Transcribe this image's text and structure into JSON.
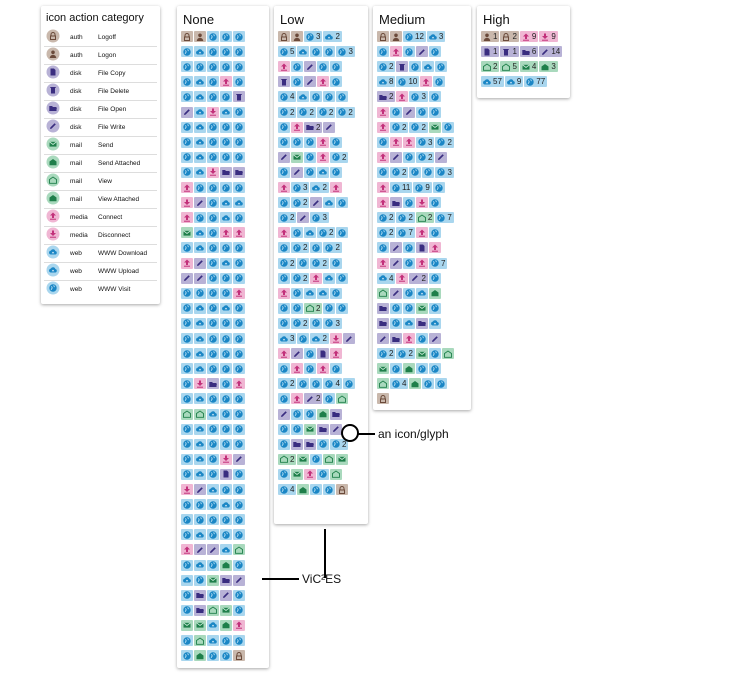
{
  "legend": {
    "title": "icon action category",
    "rows": [
      {
        "category": "auth",
        "action": "Logoff",
        "icon": "auth-logoff"
      },
      {
        "category": "auth",
        "action": "Logon",
        "icon": "auth-logon"
      },
      {
        "category": "disk",
        "action": "File Copy",
        "icon": "disk-copy"
      },
      {
        "category": "disk",
        "action": "File Delete",
        "icon": "disk-delete"
      },
      {
        "category": "disk",
        "action": "File Open",
        "icon": "disk-open"
      },
      {
        "category": "disk",
        "action": "File Write",
        "icon": "disk-write"
      },
      {
        "category": "mail",
        "action": "Send",
        "icon": "mail-send"
      },
      {
        "category": "mail",
        "action": "Send Attached",
        "icon": "mail-send-attached"
      },
      {
        "category": "mail",
        "action": "View",
        "icon": "mail-view"
      },
      {
        "category": "mail",
        "action": "View Attached",
        "icon": "mail-view-attached"
      },
      {
        "category": "media",
        "action": "Connect",
        "icon": "media-connect"
      },
      {
        "category": "media",
        "action": "Disconnect",
        "icon": "media-disconnect"
      },
      {
        "category": "web",
        "action": "WWW Download",
        "icon": "web-download"
      },
      {
        "category": "web",
        "action": "WWW Upload",
        "icon": "web-upload"
      },
      {
        "category": "web",
        "action": "WWW Visit",
        "icon": "web-visit"
      }
    ]
  },
  "colors": {
    "auth": "#c9b8ac",
    "disk": "#b8b2d6",
    "mail": "#a9d9bd",
    "media": "#f0b6d3",
    "web": "#a9d6ee",
    "auth_fg": "#6b4a3a",
    "disk_fg": "#3a2d80",
    "mail_fg": "#1e7f4a",
    "media_fg": "#c2307a",
    "web_fg": "#1a86c5"
  },
  "annotations": {
    "icon_glyph": "an icon/glyph",
    "vices": "ViC²ES"
  },
  "columns": [
    {
      "title": "None",
      "rows": [
        [
          "al",
          "an",
          "wv",
          "wv",
          "wv"
        ],
        [
          "wv",
          "wu",
          "wv",
          "wv",
          "wv"
        ],
        [
          "wv",
          "wv",
          "wv",
          "wv",
          "wv"
        ],
        [
          "wv",
          "wu",
          "wv",
          "mc",
          "wv"
        ],
        [
          "wv",
          "wu",
          "wv",
          "wv",
          "dd"
        ],
        [
          "dw",
          "wu",
          "md",
          "wu",
          "wv"
        ],
        [
          "wv",
          "wu",
          "wv",
          "wv",
          "wv"
        ],
        [
          "wv",
          "wu",
          "wv",
          "wv",
          "wv"
        ],
        [
          "wv",
          "wu",
          "wv",
          "wv",
          "wv"
        ],
        [
          "wv",
          "wu",
          "md",
          "do",
          "do"
        ],
        [
          "mc",
          "wv",
          "wv",
          "wv",
          "wv"
        ],
        [
          "md",
          "dw",
          "wv",
          "wu",
          "wu"
        ],
        [
          "mc",
          "wv",
          "wv",
          "wu",
          "wv"
        ],
        [
          "ms",
          "wu",
          "wv",
          "mc",
          "mc"
        ],
        [
          "wv",
          "wu",
          "wv",
          "wv",
          "wv"
        ],
        [
          "mc",
          "dw",
          "wv",
          "wu",
          "wv"
        ],
        [
          "dw",
          "dw",
          "wv",
          "wv",
          "wv"
        ],
        [
          "wv",
          "wv",
          "wv",
          "wv",
          "mc"
        ],
        [
          "wv",
          "wu",
          "wv",
          "wu",
          "wv"
        ],
        [
          "wv",
          "wu",
          "wv",
          "wv",
          "wv"
        ],
        [
          "wv",
          "wu",
          "wv",
          "wv",
          "wv"
        ],
        [
          "wv",
          "wu",
          "wv",
          "wv",
          "wv"
        ],
        [
          "wv",
          "wu",
          "wv",
          "wv",
          "wv"
        ],
        [
          "wv",
          "md",
          "do",
          "wv",
          "mc"
        ],
        [
          "wv",
          "wu",
          "wv",
          "wv",
          "wv"
        ],
        [
          "mv",
          "mv",
          "wu",
          "wv",
          "wv"
        ],
        [
          "wv",
          "wu",
          "wv",
          "wv",
          "wv"
        ],
        [
          "wv",
          "wu",
          "wv",
          "wv",
          "wv"
        ],
        [
          "wv",
          "wu",
          "wv",
          "md",
          "dw"
        ],
        [
          "wv",
          "wu",
          "wv",
          "dc",
          "wv"
        ],
        [
          "md",
          "dw",
          "wu",
          "wv",
          "wv"
        ],
        [
          "wv",
          "wv",
          "wv",
          "wu",
          "wv"
        ],
        [
          "wv",
          "wv",
          "wv",
          "wv",
          "wv"
        ],
        [
          "wv",
          "wu",
          "wv",
          "wv",
          "wv"
        ],
        [
          "mc",
          "dw",
          "dw",
          "wu",
          "mv"
        ],
        [
          "wv",
          "wu",
          "wv",
          "ma",
          "wv"
        ],
        [
          "wu",
          "wv",
          "ms",
          "do",
          "dw"
        ],
        [
          "wv",
          "do",
          "wv",
          "dw",
          "wv"
        ],
        [
          "wv",
          "do",
          "mv",
          "ms",
          "wv"
        ],
        [
          "ms",
          "ms",
          "wu",
          "ma",
          "mc"
        ],
        [
          "wv",
          "mv",
          "wu",
          "wv",
          "wv"
        ],
        [
          "wv",
          "ma",
          "wv",
          "wv",
          "al"
        ]
      ]
    },
    {
      "title": "Low",
      "rows": [
        [
          "al",
          "an",
          "wv:3",
          "wu:2"
        ],
        [
          "wv:5",
          "wu",
          "wv",
          "wv",
          "wv:3"
        ],
        [
          "mc",
          "wv",
          "dw",
          "wv",
          "wv"
        ],
        [
          "dd",
          "wv",
          "dw",
          "mc",
          "wv"
        ],
        [
          "wv:4",
          "wu",
          "wv",
          "wv",
          "wv"
        ],
        [
          "wv:2",
          "wv:2",
          "wv:2",
          "wv:2"
        ],
        [
          "wv",
          "mc",
          "do:2",
          "dw"
        ],
        [
          "wv",
          "wv",
          "wv",
          "mc",
          "wv"
        ],
        [
          "dw",
          "ms",
          "wv",
          "mc",
          "wv:2"
        ],
        [
          "wv",
          "dw",
          "wv",
          "wu",
          "wv"
        ],
        [
          "mc",
          "wv:3",
          "wu:2",
          "mc"
        ],
        [
          "wv",
          "wv:2",
          "dw",
          "wu",
          "wv"
        ],
        [
          "wv:2",
          "dw",
          "wv:3"
        ],
        [
          "mc",
          "wv",
          "wu",
          "wv:2",
          "wv"
        ],
        [
          "wv",
          "wv:2",
          "wv",
          "wv:2"
        ],
        [
          "wv:2",
          "wv",
          "wv:2",
          "wv"
        ],
        [
          "wv",
          "wv:2",
          "mc",
          "wu",
          "wv"
        ],
        [
          "mc",
          "wv",
          "wu",
          "wu",
          "wv"
        ],
        [
          "wv",
          "wv",
          "mv:2",
          "wv",
          "wv"
        ],
        [
          "wv",
          "wv:2",
          "wv",
          "wv:3"
        ],
        [
          "wu:3",
          "wv",
          "wu:2",
          "md",
          "dw"
        ],
        [
          "mc",
          "dw",
          "wv",
          "dc",
          "mc"
        ],
        [
          "wv",
          "mc",
          "wv",
          "mc",
          "wv"
        ],
        [
          "wv:2",
          "wv",
          "wv",
          "wv:4",
          "wv"
        ],
        [
          "wv",
          "mc",
          "dw:2",
          "wv",
          "mv"
        ],
        [
          "dw",
          "wv",
          "wv",
          "ma",
          "do"
        ],
        [
          "wv",
          "wv",
          "ms",
          "do",
          "dw"
        ],
        [
          "wv",
          "do",
          "do",
          "wv",
          "wv:2"
        ],
        [
          "mv:2",
          "ms",
          "wv",
          "mv",
          "ms"
        ],
        [
          "wv",
          "ms",
          "mc",
          "wv",
          "mv"
        ],
        [
          "wv:4",
          "ma",
          "wv",
          "wv",
          "al"
        ]
      ]
    },
    {
      "title": "Medium",
      "rows": [
        [
          "al",
          "an",
          "wv:12",
          "wu:3"
        ],
        [
          "wv",
          "mc",
          "wv",
          "dw",
          "wv"
        ],
        [
          "wv:2",
          "dd",
          "wv",
          "wu",
          "wv"
        ],
        [
          "wu:8",
          "wv:10",
          "mc",
          "wv"
        ],
        [
          "do:2",
          "mc",
          "wv:3",
          "wv"
        ],
        [
          "mc",
          "wv",
          "dw",
          "wv",
          "wv"
        ],
        [
          "mc",
          "wv:2",
          "wv:2",
          "ms",
          "wv"
        ],
        [
          "wv",
          "mc",
          "mc",
          "wv:3",
          "wv:2"
        ],
        [
          "mc",
          "dw",
          "wv",
          "wv:2",
          "dw"
        ],
        [
          "wv",
          "wv:2",
          "wv",
          "wv",
          "wv:3"
        ],
        [
          "mc",
          "wv:11",
          "wv:9",
          "wv"
        ],
        [
          "mc",
          "do",
          "wv",
          "md",
          "wv"
        ],
        [
          "wv:2",
          "wv:2",
          "mv:2",
          "wv:7"
        ],
        [
          "wv:2",
          "wv:7",
          "mc",
          "wv"
        ],
        [
          "wv",
          "dw",
          "wv",
          "dc",
          "mc"
        ],
        [
          "mc",
          "dw",
          "wv",
          "mc",
          "wv:7"
        ],
        [
          "wu:4",
          "mc",
          "dw:2",
          "wv"
        ],
        [
          "mv",
          "dw",
          "wv",
          "wu",
          "ma"
        ],
        [
          "do",
          "wv",
          "wv",
          "ms",
          "wv"
        ],
        [
          "do",
          "wv",
          "wu",
          "do",
          "wu"
        ],
        [
          "dw",
          "do",
          "mc",
          "wv",
          "dw"
        ],
        [
          "wv:2",
          "wv:2",
          "ms",
          "wv",
          "mv"
        ],
        [
          "ms",
          "wv",
          "ma",
          "wv",
          "wv"
        ],
        [
          "mv",
          "wv:4",
          "ma",
          "wv",
          "wv"
        ],
        [
          "al"
        ]
      ]
    },
    {
      "title": "High",
      "rows": [
        [
          "an:1",
          "al:2",
          "mc:9",
          "md:9"
        ],
        [
          "dc:1",
          "dd:1",
          "do:6",
          "dw:14"
        ],
        [
          "mv:2",
          "mv:5",
          "ms:4",
          "ma:3"
        ],
        [
          "wu:57",
          "wu:9",
          "wv:77"
        ]
      ]
    }
  ]
}
